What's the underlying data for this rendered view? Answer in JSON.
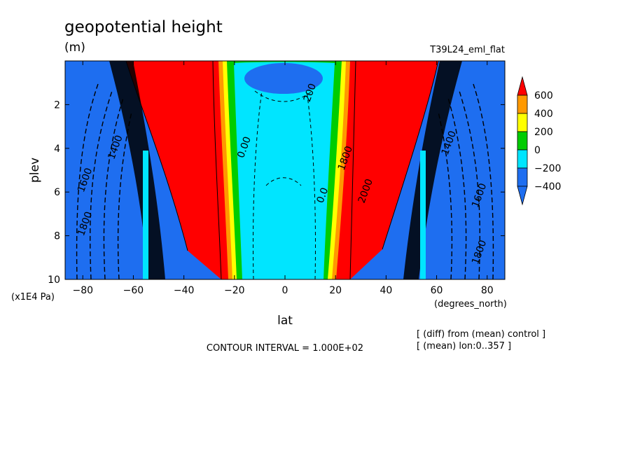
{
  "chart_data": {
    "type": "contour",
    "title": "geopotential height",
    "units": "(m)",
    "run_label": "T39L24_eml_flat",
    "xlabel": "lat",
    "x_units": "(degrees_north)",
    "ylabel": "plev",
    "y_units": "(x1E4 Pa)",
    "xlim": [
      -87,
      87
    ],
    "ylim": [
      10,
      0
    ],
    "x_ticks": [
      -80,
      -60,
      -40,
      -20,
      0,
      20,
      40,
      60,
      80
    ],
    "x_tick_labels": [
      "−80",
      "−60",
      "−40",
      "−20",
      "0",
      "20",
      "40",
      "60",
      "80"
    ],
    "y_ticks": [
      2,
      4,
      6,
      8,
      10
    ],
    "y_tick_labels": [
      "2",
      "4",
      "6",
      "8",
      "10"
    ],
    "contour_interval_text": "CONTOUR INTERVAL = 1.000E+02",
    "notes": [
      "[ (diff) from (mean) control ]",
      "[ (mean) lon:0..357 ]"
    ],
    "colorbar": {
      "levels": [
        -400,
        -200,
        0,
        200,
        400,
        600
      ],
      "labels": [
        "600",
        "400",
        "200",
        "0",
        "−200",
        "−400"
      ],
      "colors": {
        "below_-400": "#1e6ef0",
        "-400_-200": "#1e6ef0",
        "-200_0": "#00e5ff",
        "0_200": "#00cc00",
        "200_400": "#ffff00",
        "400_600": "#ff9900",
        "above_600": "#ff0000"
      }
    },
    "contour_labels": [
      {
        "text": "1600",
        "lat": -78,
        "plev": 5.5
      },
      {
        "text": "1800",
        "lat": -78,
        "plev": 7.5
      },
      {
        "text": "1400",
        "lat": -66,
        "plev": 4.0
      },
      {
        "text": "1600",
        "lat": 78,
        "plev": 6.2
      },
      {
        "text": "1800",
        "lat": 78,
        "plev": 8.8
      },
      {
        "text": "1400",
        "lat": 66,
        "plev": 3.8
      },
      {
        "text": "200",
        "lat": 11,
        "plev": 1.5
      },
      {
        "text": "2000",
        "lat": 33,
        "plev": 6.0
      },
      {
        "text": "1800",
        "lat": 25,
        "plev": 4.5
      },
      {
        "text": "0.0",
        "lat": 16,
        "plev": 6.2
      },
      {
        "text": "0.00",
        "lat": -15,
        "plev": 4.0
      }
    ]
  }
}
